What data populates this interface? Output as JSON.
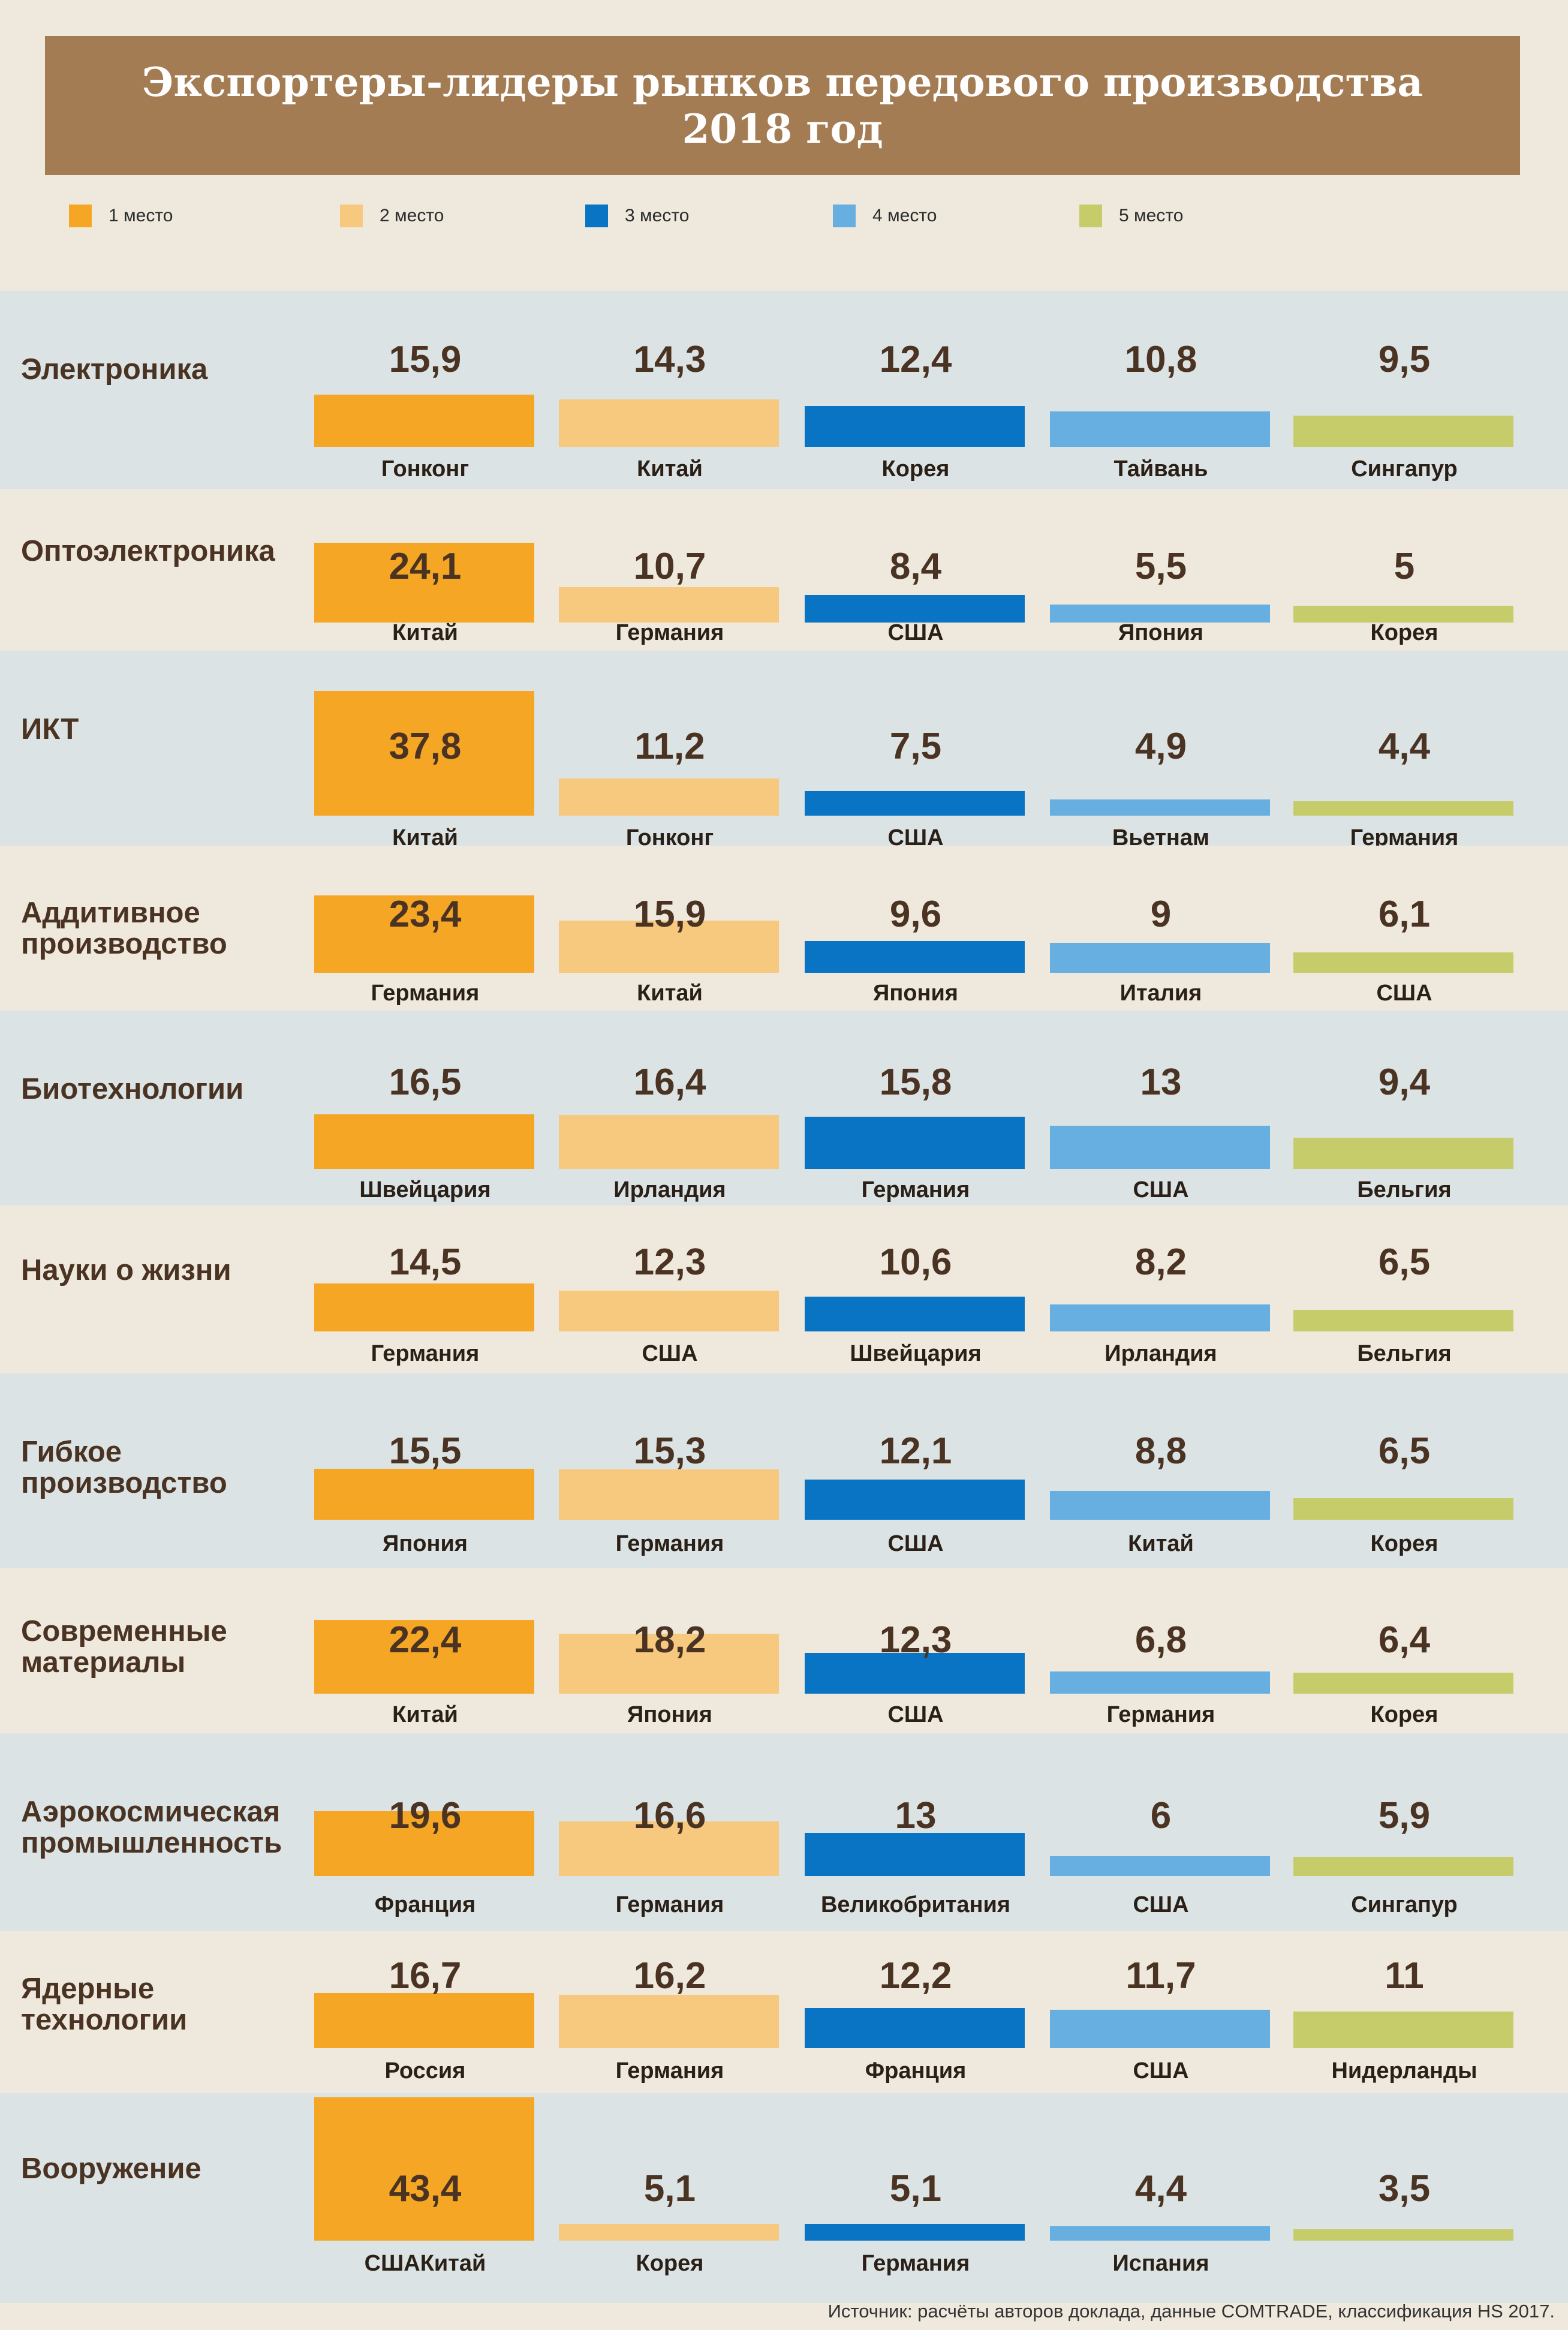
{
  "title_line1": "Экспортеры-лидеры рынков передового производства",
  "title_line2": "2018 год",
  "legend": [
    {
      "label": "1 место",
      "color": "#f4a624"
    },
    {
      "label": "2 место",
      "color": "#f7c97f"
    },
    {
      "label": "3 место",
      "color": "#0a74c4"
    },
    {
      "label": "4 место",
      "color": "#67afe0"
    },
    {
      "label": "5 место",
      "color": "#c6cc6a"
    }
  ],
  "source": "Источник: расчёты авторов доклада, данные COMTRADE, классификация HS 2017.",
  "chart_data": {
    "type": "bar",
    "title": "Экспортеры-лидеры рынков передового производства 2018 год",
    "series_ranks": [
      "1 место",
      "2 место",
      "3 место",
      "4 место",
      "5 место"
    ],
    "categories": [
      {
        "name": "Электроника",
        "values": [
          "15,9",
          "14,3",
          "12,4",
          "10,8",
          "9,5"
        ],
        "numbers": [
          15.9,
          14.3,
          12.4,
          10.8,
          9.5
        ],
        "countries": [
          "Гонконг",
          "Китай",
          "Корея",
          "Тайвань",
          "Сингапур"
        ]
      },
      {
        "name": "Оптоэлектроника",
        "values": [
          "24,1",
          "10,7",
          "8,4",
          "5,5",
          "5"
        ],
        "numbers": [
          24.1,
          10.7,
          8.4,
          5.5,
          5
        ],
        "countries": [
          "Китай",
          "Германия",
          "США",
          "Япония",
          "Корея"
        ]
      },
      {
        "name": "ИКТ",
        "values": [
          "37,8",
          "11,2",
          "7,5",
          "4,9",
          "4,4"
        ],
        "numbers": [
          37.8,
          11.2,
          7.5,
          4.9,
          4.4
        ],
        "countries": [
          "Китай",
          "Гонконг",
          "США",
          "Вьетнам",
          "Германия"
        ]
      },
      {
        "name": "Аддитивное производство",
        "values": [
          "23,4",
          "15,9",
          "9,6",
          "9",
          "6,1"
        ],
        "numbers": [
          23.4,
          15.9,
          9.6,
          9,
          6.1
        ],
        "countries": [
          "Германия",
          "Китай",
          "Япония",
          "Италия",
          "США"
        ]
      },
      {
        "name": "Биотехнологии",
        "values": [
          "16,5",
          "16,4",
          "15,8",
          "13",
          "9,4"
        ],
        "numbers": [
          16.5,
          16.4,
          15.8,
          13,
          9.4
        ],
        "countries": [
          "Швейцария",
          "Ирландия",
          "Германия",
          "США",
          "Бельгия"
        ]
      },
      {
        "name": "Науки о жизни",
        "values": [
          "14,5",
          "12,3",
          "10,6",
          "8,2",
          "6,5"
        ],
        "numbers": [
          14.5,
          12.3,
          10.6,
          8.2,
          6.5
        ],
        "countries": [
          "Германия",
          "США",
          "Швейцария",
          "Ирландия",
          "Бельгия"
        ]
      },
      {
        "name": "Гибкое производство",
        "values": [
          "15,5",
          "15,3",
          "12,1",
          "8,8",
          "6,5"
        ],
        "numbers": [
          15.5,
          15.3,
          12.1,
          8.8,
          6.5
        ],
        "countries": [
          "Япония",
          "Германия",
          "США",
          "Китай",
          "Корея"
        ]
      },
      {
        "name": "Современные материалы",
        "values": [
          "22,4",
          "18,2",
          "12,3",
          "6,8",
          "6,4"
        ],
        "numbers": [
          22.4,
          18.2,
          12.3,
          6.8,
          6.4
        ],
        "countries": [
          "Китай",
          "Япония",
          "США",
          "Германия",
          "Корея"
        ]
      },
      {
        "name": "Аэрокосмическая промышленность",
        "values": [
          "19,6",
          "16,6",
          "13",
          "6",
          "5,9"
        ],
        "numbers": [
          19.6,
          16.6,
          13,
          6,
          5.9
        ],
        "countries": [
          "Франция",
          "Германия",
          "Великобритания",
          "США",
          "Сингапур"
        ]
      },
      {
        "name": "Ядерные технологии",
        "values": [
          "16,7",
          "16,2",
          "12,2",
          "11,7",
          "11"
        ],
        "numbers": [
          16.7,
          16.2,
          12.2,
          11.7,
          11
        ],
        "countries": [
          "Россия",
          "Германия",
          "Франция",
          "США",
          "Нидерланды"
        ]
      },
      {
        "name": "Вооружение",
        "values": [
          "43,4",
          "5,1",
          "5,1",
          "4,4",
          "3,5"
        ],
        "numbers": [
          43.4,
          5.1,
          5.1,
          4.4,
          3.5
        ],
        "countries": [
          "СШАКитай",
          "Корея",
          "Германия",
          "Испания",
          ""
        ]
      }
    ]
  }
}
